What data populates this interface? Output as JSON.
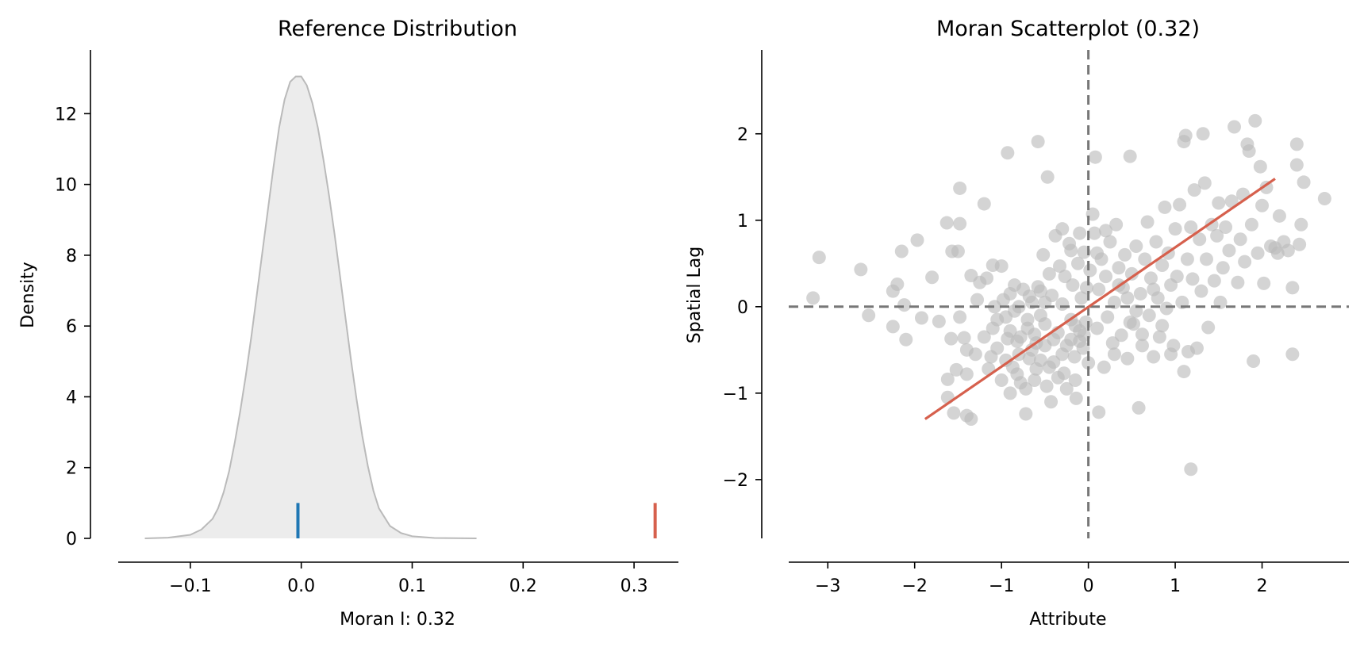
{
  "chart_data": [
    {
      "type": "area",
      "title": "Reference Distribution",
      "xlabel": "Moran I: 0.32",
      "ylabel": "Density",
      "xlim": [
        -0.165,
        0.34
      ],
      "ylim": [
        0,
        13.8
      ],
      "xticks": [
        -0.1,
        0.0,
        0.1,
        0.2,
        0.3
      ],
      "xtick_labels": [
        "−0.1",
        "0.0",
        "0.1",
        "0.2",
        "0.3"
      ],
      "yticks": [
        0,
        2,
        4,
        6,
        8,
        10,
        12
      ],
      "ytick_labels": [
        "0",
        "2",
        "4",
        "6",
        "8",
        "10",
        "12"
      ],
      "series": [
        {
          "x": [
            -0.141,
            -0.12,
            -0.1,
            -0.09,
            -0.08,
            -0.075,
            -0.07,
            -0.065,
            -0.06,
            -0.055,
            -0.05,
            -0.045,
            -0.04,
            -0.035,
            -0.03,
            -0.025,
            -0.02,
            -0.015,
            -0.01,
            -0.005,
            0.0,
            0.005,
            0.01,
            0.015,
            0.02,
            0.025,
            0.03,
            0.035,
            0.04,
            0.045,
            0.05,
            0.055,
            0.06,
            0.065,
            0.07,
            0.08,
            0.09,
            0.1,
            0.12,
            0.158
          ],
          "y": [
            0.0,
            0.02,
            0.1,
            0.25,
            0.55,
            0.85,
            1.3,
            1.9,
            2.7,
            3.6,
            4.6,
            5.7,
            6.9,
            8.1,
            9.3,
            10.5,
            11.6,
            12.4,
            12.9,
            13.05,
            13.05,
            12.8,
            12.3,
            11.6,
            10.7,
            9.7,
            8.6,
            7.4,
            6.2,
            5.0,
            3.9,
            2.9,
            2.05,
            1.35,
            0.85,
            0.35,
            0.15,
            0.06,
            0.01,
            0.0
          ],
          "color": "#bababa",
          "fill": "#ececec"
        }
      ],
      "markers": [
        {
          "x": -0.003,
          "y0": 0,
          "y1": 1.0,
          "color": "#1f77b4"
        },
        {
          "x": 0.319,
          "y0": 0,
          "y1": 1.0,
          "color": "#d6604d"
        }
      ]
    },
    {
      "type": "scatter",
      "title": "Moran Scatterplot (0.32)",
      "xlabel": "Attribute",
      "ylabel": "Spatial Lag",
      "xlim": [
        -3.45,
        3.0
      ],
      "ylim": [
        -2.68,
        2.97
      ],
      "xticks": [
        -3,
        -2,
        -1,
        0,
        1,
        2
      ],
      "xtick_labels": [
        "−3",
        "−2",
        "−1",
        "0",
        "1",
        "2"
      ],
      "yticks": [
        -2,
        -1,
        0,
        1,
        2
      ],
      "ytick_labels": [
        "−2",
        "−1",
        "0",
        "1",
        "2"
      ],
      "point_color": "#bababa",
      "reference_lines": {
        "x": 0,
        "y": 0,
        "color": "#777777"
      },
      "fit_line": {
        "x": [
          -1.88,
          2.15
        ],
        "y": [
          -1.3,
          1.48
        ],
        "color": "#d6604d"
      },
      "points": [
        [
          -3.1,
          0.57
        ],
        [
          -3.17,
          0.1
        ],
        [
          -2.62,
          0.43
        ],
        [
          -2.53,
          -0.1
        ],
        [
          -2.25,
          -0.23
        ],
        [
          -2.1,
          -0.38
        ],
        [
          -2.25,
          0.18
        ],
        [
          -2.2,
          0.26
        ],
        [
          -2.15,
          0.64
        ],
        [
          -2.12,
          0.02
        ],
        [
          -1.97,
          0.77
        ],
        [
          -1.92,
          -0.13
        ],
        [
          -1.8,
          0.34
        ],
        [
          -1.72,
          -0.17
        ],
        [
          -1.63,
          0.97
        ],
        [
          -1.58,
          -0.37
        ],
        [
          -1.57,
          0.64
        ],
        [
          -1.5,
          0.64
        ],
        [
          -1.48,
          0.96
        ],
        [
          -1.48,
          1.37
        ],
        [
          -1.48,
          -0.12
        ],
        [
          -1.52,
          -0.73
        ],
        [
          -1.43,
          -0.36
        ],
        [
          -1.4,
          -0.5
        ],
        [
          -1.62,
          -1.05
        ],
        [
          -1.62,
          -0.84
        ],
        [
          -1.55,
          -1.23
        ],
        [
          -1.4,
          -1.26
        ],
        [
          -1.4,
          -0.78
        ],
        [
          -1.35,
          -1.3
        ],
        [
          -1.35,
          0.36
        ],
        [
          -1.28,
          0.08
        ],
        [
          -1.25,
          0.28
        ],
        [
          -1.2,
          1.19
        ],
        [
          -1.17,
          0.33
        ],
        [
          -1.12,
          -0.58
        ],
        [
          -1.1,
          0.48
        ],
        [
          -1.05,
          -0.15
        ],
        [
          -1.0,
          0.47
        ],
        [
          -0.98,
          0.08
        ],
        [
          -0.93,
          1.78
        ],
        [
          -0.93,
          -0.37
        ],
        [
          -0.9,
          -1.0
        ],
        [
          -0.87,
          -0.7
        ],
        [
          -0.85,
          0.25
        ],
        [
          -0.82,
          -0.4
        ],
        [
          -0.8,
          -0.55
        ],
        [
          -0.78,
          -0.88
        ],
        [
          -0.75,
          0.2
        ],
        [
          -0.72,
          -1.24
        ],
        [
          -0.7,
          -0.25
        ],
        [
          -0.68,
          -0.6
        ],
        [
          -0.65,
          0.05
        ],
        [
          -0.62,
          -0.32
        ],
        [
          -0.6,
          -0.72
        ],
        [
          -0.58,
          0.23
        ],
        [
          -0.55,
          -0.1
        ],
        [
          -0.52,
          0.6
        ],
        [
          -0.5,
          -0.45
        ],
        [
          -0.48,
          -0.92
        ],
        [
          -0.45,
          0.38
        ],
        [
          -0.43,
          -1.1
        ],
        [
          -0.42,
          0.13
        ],
        [
          -0.4,
          -0.64
        ],
        [
          -0.38,
          0.82
        ],
        [
          -0.35,
          -0.3
        ],
        [
          -0.33,
          0.47
        ],
        [
          -0.3,
          0.03
        ],
        [
          -0.28,
          -0.77
        ],
        [
          -0.27,
          0.35
        ],
        [
          -0.25,
          -0.45
        ],
        [
          -0.22,
          0.73
        ],
        [
          -0.2,
          -0.15
        ],
        [
          -0.18,
          0.25
        ],
        [
          -0.16,
          -0.58
        ],
        [
          -0.14,
          -1.06
        ],
        [
          -0.12,
          0.5
        ],
        [
          -0.1,
          -0.28
        ],
        [
          -0.08,
          0.1
        ],
        [
          -0.06,
          -0.48
        ],
        [
          -0.05,
          0.63
        ],
        [
          -0.03,
          -0.18
        ],
        [
          -0.02,
          0.22
        ],
        [
          0.0,
          -0.65
        ],
        [
          -0.47,
          1.5
        ],
        [
          -0.58,
          1.91
        ],
        [
          0.05,
          1.07
        ],
        [
          0.07,
          0.85
        ],
        [
          0.08,
          1.73
        ],
        [
          0.1,
          -0.25
        ],
        [
          0.12,
          -1.22
        ],
        [
          0.12,
          0.2
        ],
        [
          0.15,
          0.55
        ],
        [
          0.18,
          -0.7
        ],
        [
          0.2,
          0.35
        ],
        [
          0.22,
          -0.12
        ],
        [
          0.25,
          0.75
        ],
        [
          0.28,
          -0.42
        ],
        [
          0.3,
          0.05
        ],
        [
          0.32,
          0.95
        ],
        [
          0.35,
          0.45
        ],
        [
          0.38,
          -0.33
        ],
        [
          0.4,
          0.22
        ],
        [
          0.42,
          0.6
        ],
        [
          0.45,
          -0.6
        ],
        [
          0.48,
          1.74
        ],
        [
          0.5,
          0.38
        ],
        [
          0.52,
          -0.2
        ],
        [
          0.55,
          0.7
        ],
        [
          0.58,
          -1.17
        ],
        [
          0.6,
          0.15
        ],
        [
          0.62,
          -0.45
        ],
        [
          0.65,
          0.55
        ],
        [
          0.68,
          0.98
        ],
        [
          0.7,
          -0.1
        ],
        [
          0.72,
          0.33
        ],
        [
          0.75,
          -0.58
        ],
        [
          0.78,
          0.75
        ],
        [
          0.8,
          0.1
        ],
        [
          0.82,
          -0.35
        ],
        [
          0.85,
          0.48
        ],
        [
          0.88,
          1.15
        ],
        [
          0.9,
          -0.02
        ],
        [
          0.92,
          0.62
        ],
        [
          0.95,
          0.25
        ],
        [
          0.98,
          -0.45
        ],
        [
          1.0,
          0.9
        ],
        [
          1.02,
          0.35
        ],
        [
          1.05,
          1.18
        ],
        [
          1.08,
          0.05
        ],
        [
          1.1,
          -0.75
        ],
        [
          1.12,
          1.98
        ],
        [
          1.1,
          1.91
        ],
        [
          1.14,
          0.55
        ],
        [
          1.15,
          -0.52
        ],
        [
          1.18,
          0.92
        ],
        [
          1.18,
          -1.88
        ],
        [
          1.2,
          0.32
        ],
        [
          1.22,
          1.35
        ],
        [
          1.25,
          -0.48
        ],
        [
          1.28,
          0.78
        ],
        [
          1.3,
          0.18
        ],
        [
          1.32,
          2.0
        ],
        [
          1.34,
          1.43
        ],
        [
          1.36,
          0.55
        ],
        [
          1.38,
          -0.24
        ],
        [
          1.42,
          0.95
        ],
        [
          1.45,
          0.3
        ],
        [
          1.48,
          0.82
        ],
        [
          1.5,
          1.2
        ],
        [
          1.52,
          0.05
        ],
        [
          1.55,
          0.45
        ],
        [
          1.58,
          0.92
        ],
        [
          1.62,
          0.65
        ],
        [
          1.65,
          1.22
        ],
        [
          1.68,
          2.08
        ],
        [
          1.72,
          0.28
        ],
        [
          1.75,
          0.78
        ],
        [
          1.78,
          1.3
        ],
        [
          1.8,
          0.52
        ],
        [
          1.83,
          1.88
        ],
        [
          1.85,
          1.8
        ],
        [
          1.88,
          0.95
        ],
        [
          1.9,
          -0.63
        ],
        [
          1.92,
          2.15
        ],
        [
          1.95,
          0.62
        ],
        [
          1.98,
          1.62
        ],
        [
          2.0,
          1.17
        ],
        [
          2.02,
          0.27
        ],
        [
          2.05,
          1.38
        ],
        [
          2.1,
          0.7
        ],
        [
          2.15,
          0.68
        ],
        [
          2.18,
          0.62
        ],
        [
          2.2,
          1.05
        ],
        [
          2.25,
          0.75
        ],
        [
          2.3,
          0.65
        ],
        [
          2.35,
          0.22
        ],
        [
          2.35,
          -0.55
        ],
        [
          2.4,
          1.88
        ],
        [
          2.4,
          1.64
        ],
        [
          2.43,
          0.72
        ],
        [
          2.45,
          0.95
        ],
        [
          2.48,
          1.44
        ],
        [
          2.72,
          1.25
        ],
        [
          0.48,
          -0.18
        ],
        [
          0.3,
          -0.55
        ],
        [
          -0.95,
          -0.12
        ],
        [
          -1.1,
          -0.25
        ],
        [
          -1.2,
          -0.35
        ],
        [
          -1.05,
          -0.48
        ],
        [
          -0.9,
          -0.28
        ],
        [
          -0.85,
          -0.05
        ],
        [
          -0.7,
          -0.15
        ],
        [
          -0.6,
          -0.42
        ],
        [
          -0.5,
          -0.2
        ],
        [
          -0.4,
          -0.38
        ],
        [
          -0.3,
          -0.55
        ],
        [
          -0.2,
          -0.38
        ],
        [
          -0.15,
          -0.22
        ],
        [
          -0.1,
          -0.4
        ],
        [
          -0.05,
          -0.33
        ],
        [
          -0.78,
          -0.35
        ],
        [
          -0.65,
          -0.5
        ],
        [
          -0.55,
          -0.62
        ],
        [
          -0.45,
          -0.7
        ],
        [
          -0.35,
          -0.82
        ],
        [
          -0.25,
          -0.95
        ],
        [
          -0.15,
          -0.85
        ],
        [
          -1.3,
          -0.55
        ],
        [
          -1.15,
          -0.72
        ],
        [
          -1.0,
          -0.85
        ],
        [
          -0.95,
          -0.62
        ],
        [
          -0.82,
          -0.78
        ],
        [
          -0.72,
          -0.95
        ],
        [
          -0.62,
          -0.85
        ],
        [
          -0.3,
          0.9
        ],
        [
          -0.2,
          0.65
        ],
        [
          -0.1,
          0.85
        ],
        [
          0.02,
          0.42
        ],
        [
          0.1,
          0.62
        ],
        [
          0.2,
          0.88
        ],
        [
          0.35,
          0.25
        ],
        [
          0.45,
          0.1
        ],
        [
          0.55,
          -0.05
        ],
        [
          0.62,
          -0.32
        ],
        [
          0.75,
          0.2
        ],
        [
          0.85,
          -0.22
        ],
        [
          0.95,
          -0.55
        ],
        [
          -0.5,
          0.05
        ],
        [
          -0.55,
          0.18
        ],
        [
          -0.68,
          0.12
        ],
        [
          -0.8,
          0.0
        ],
        [
          -0.9,
          0.15
        ],
        [
          -1.08,
          0.0
        ]
      ]
    }
  ]
}
